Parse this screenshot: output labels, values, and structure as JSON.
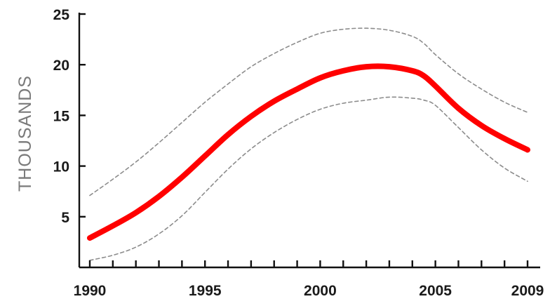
{
  "chart_data": {
    "type": "line",
    "title": "",
    "xlabel": "",
    "ylabel": "THOUSANDS",
    "xlim": [
      1990,
      2009
    ],
    "ylim": [
      0,
      25
    ],
    "x_ticks": [
      1990,
      1995,
      2000,
      2005,
      2009
    ],
    "y_ticks": [
      5,
      10,
      15,
      20,
      25
    ],
    "grid": false,
    "legend": "none",
    "x": [
      1990,
      1991,
      1992,
      1993,
      1994,
      1995,
      1996,
      1997,
      1998,
      1999,
      2000,
      2001,
      2002,
      2003,
      2004,
      2004.5,
      2005,
      2006,
      2007,
      2008,
      2009
    ],
    "series": [
      {
        "role": "estimate",
        "color": "#ff0000",
        "style": "solid-thick",
        "values": [
          2.9,
          4.1,
          5.4,
          7.0,
          8.9,
          11.0,
          13.1,
          14.9,
          16.4,
          17.6,
          18.7,
          19.4,
          19.8,
          19.8,
          19.4,
          18.9,
          17.9,
          15.7,
          14.0,
          12.7,
          11.6
        ]
      },
      {
        "role": "upper-bound",
        "color": "#8c8c8c",
        "style": "dashed",
        "values": [
          7.1,
          8.7,
          10.4,
          12.3,
          14.3,
          16.3,
          18.1,
          19.8,
          21.1,
          22.2,
          23.1,
          23.5,
          23.6,
          23.4,
          22.8,
          22.1,
          21.0,
          19.1,
          17.6,
          16.3,
          15.3
        ]
      },
      {
        "role": "lower-bound",
        "color": "#8c8c8c",
        "style": "dashed",
        "values": [
          0.7,
          1.2,
          2.0,
          3.3,
          5.1,
          7.4,
          9.7,
          11.7,
          13.3,
          14.6,
          15.6,
          16.2,
          16.5,
          16.8,
          16.7,
          16.5,
          16.0,
          13.8,
          11.6,
          9.8,
          8.5
        ]
      }
    ]
  }
}
